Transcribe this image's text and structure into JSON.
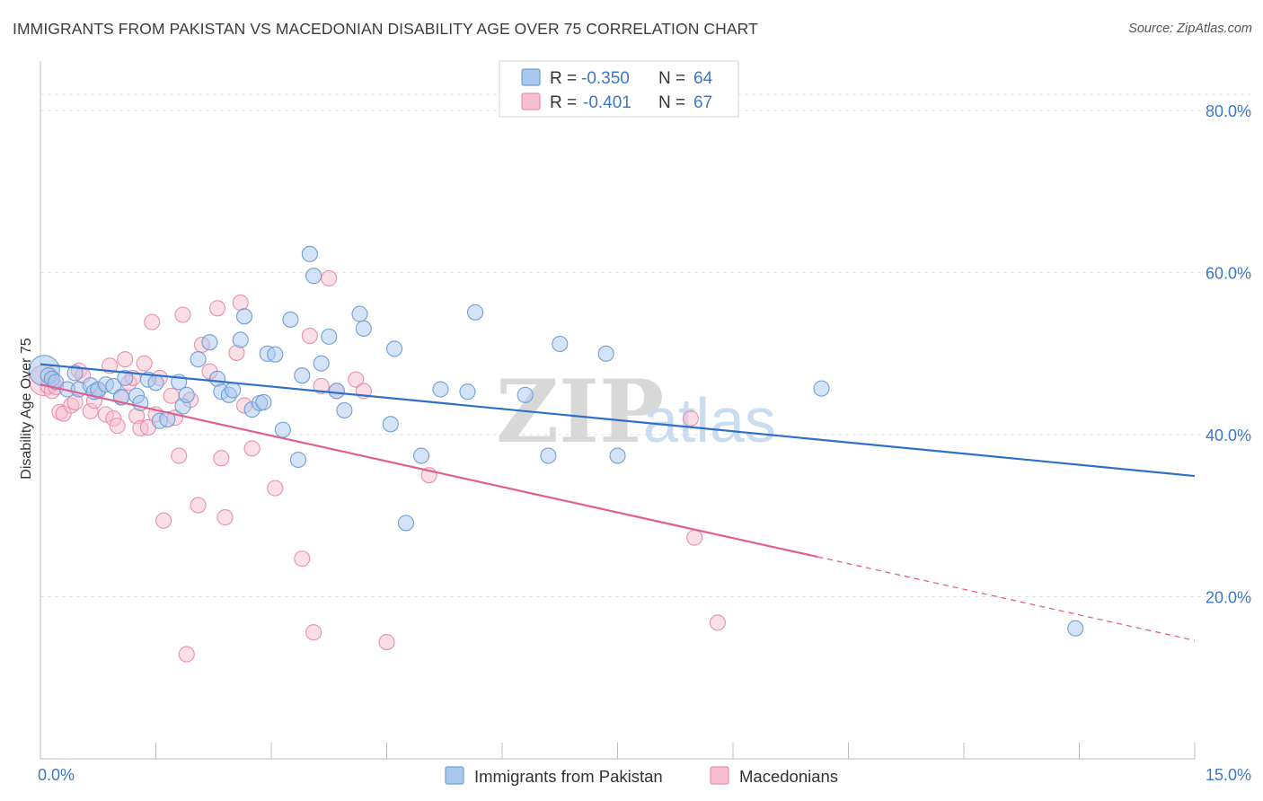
{
  "title": "IMMIGRANTS FROM PAKISTAN VS MACEDONIAN DISABILITY AGE OVER 75 CORRELATION CHART",
  "source": "Source: ZipAtlas.com",
  "watermark": {
    "part1": "ZIP",
    "part2": "atlas"
  },
  "legend_box": {
    "rows": [
      {
        "r_label": "R =",
        "r_value": "-0.350",
        "n_label": "N =",
        "n_value": "64"
      },
      {
        "r_label": "R =",
        "r_value": "-0.401",
        "n_label": "N =",
        "n_value": "67"
      }
    ]
  },
  "colors": {
    "blue_fill": "#a9c8ee",
    "blue_stroke": "#6f9fd8",
    "blue_line": "#2e6fcb",
    "pink_fill": "#f6bfd0",
    "pink_stroke": "#e98fae",
    "pink_line": "#e0608c",
    "tick_text": "#3d77c9",
    "grid": "#e2e2e2"
  },
  "chart_data": {
    "type": "scatter",
    "xlabel": "",
    "ylabel": "Disability Age Over 75",
    "xlim": [
      0,
      15
    ],
    "ylim": [
      0,
      85
    ],
    "x_tick_labels": [
      "0.0%",
      "15.0%"
    ],
    "y_ticks": [
      20,
      40,
      60,
      80
    ],
    "y_tick_labels": [
      "20.0%",
      "40.0%",
      "60.0%",
      "80.0%"
    ],
    "grid": true,
    "legend_position": "bottom",
    "series": [
      {
        "name": "Immigrants from Pakistan",
        "color": "blue",
        "r": -0.35,
        "n": 64,
        "trend": {
          "x": [
            0,
            15
          ],
          "y": [
            48.7,
            34.9
          ],
          "dash_from": null
        },
        "points": [
          {
            "x": 0.05,
            "y": 47.9,
            "big": true
          },
          {
            "x": 0.1,
            "y": 47.3
          },
          {
            "x": 0.15,
            "y": 46.9
          },
          {
            "x": 0.2,
            "y": 46.5
          },
          {
            "x": 0.35,
            "y": 45.6
          },
          {
            "x": 0.45,
            "y": 47.6
          },
          {
            "x": 0.5,
            "y": 45.6
          },
          {
            "x": 0.65,
            "y": 46.1
          },
          {
            "x": 0.7,
            "y": 45.3
          },
          {
            "x": 0.75,
            "y": 45.6
          },
          {
            "x": 0.85,
            "y": 46.2
          },
          {
            "x": 0.95,
            "y": 46.0
          },
          {
            "x": 1.05,
            "y": 44.6
          },
          {
            "x": 1.1,
            "y": 47.0
          },
          {
            "x": 1.25,
            "y": 44.8
          },
          {
            "x": 1.3,
            "y": 43.9
          },
          {
            "x": 1.4,
            "y": 46.8
          },
          {
            "x": 1.5,
            "y": 46.4
          },
          {
            "x": 1.55,
            "y": 41.7
          },
          {
            "x": 1.65,
            "y": 41.9
          },
          {
            "x": 1.8,
            "y": 46.5
          },
          {
            "x": 1.85,
            "y": 43.5
          },
          {
            "x": 1.9,
            "y": 44.9
          },
          {
            "x": 2.05,
            "y": 49.3
          },
          {
            "x": 2.2,
            "y": 51.4
          },
          {
            "x": 2.3,
            "y": 46.9
          },
          {
            "x": 2.35,
            "y": 45.3
          },
          {
            "x": 2.45,
            "y": 44.9
          },
          {
            "x": 2.5,
            "y": 45.5
          },
          {
            "x": 2.6,
            "y": 51.7
          },
          {
            "x": 2.65,
            "y": 54.6
          },
          {
            "x": 2.75,
            "y": 43.1
          },
          {
            "x": 2.85,
            "y": 43.9
          },
          {
            "x": 2.9,
            "y": 44.0
          },
          {
            "x": 2.95,
            "y": 50.0
          },
          {
            "x": 3.05,
            "y": 49.9
          },
          {
            "x": 3.15,
            "y": 40.6
          },
          {
            "x": 3.25,
            "y": 54.2
          },
          {
            "x": 3.35,
            "y": 36.9
          },
          {
            "x": 3.4,
            "y": 47.3
          },
          {
            "x": 3.5,
            "y": 62.3
          },
          {
            "x": 3.55,
            "y": 59.6
          },
          {
            "x": 3.65,
            "y": 48.8
          },
          {
            "x": 3.75,
            "y": 52.1
          },
          {
            "x": 3.85,
            "y": 45.4
          },
          {
            "x": 3.95,
            "y": 43.0
          },
          {
            "x": 4.15,
            "y": 54.9
          },
          {
            "x": 4.2,
            "y": 53.1
          },
          {
            "x": 4.55,
            "y": 41.3
          },
          {
            "x": 4.6,
            "y": 50.6
          },
          {
            "x": 4.75,
            "y": 29.1
          },
          {
            "x": 4.95,
            "y": 37.4
          },
          {
            "x": 5.2,
            "y": 45.6
          },
          {
            "x": 5.55,
            "y": 45.3
          },
          {
            "x": 5.65,
            "y": 55.1
          },
          {
            "x": 6.3,
            "y": 44.9
          },
          {
            "x": 6.6,
            "y": 37.4
          },
          {
            "x": 6.75,
            "y": 51.2
          },
          {
            "x": 7.35,
            "y": 50.0
          },
          {
            "x": 7.5,
            "y": 37.4
          },
          {
            "x": 10.15,
            "y": 45.7
          },
          {
            "x": 13.45,
            "y": 16.1
          }
        ]
      },
      {
        "name": "Macedonians",
        "color": "pink",
        "r": -0.401,
        "n": 67,
        "trend": {
          "x": [
            0,
            15
          ],
          "y": [
            46.2,
            14.6
          ],
          "dash_from": 10.1
        },
        "points": [
          {
            "x": 0.05,
            "y": 46.7,
            "big": true
          },
          {
            "x": 0.1,
            "y": 46.0
          },
          {
            "x": 0.15,
            "y": 45.4
          },
          {
            "x": 0.2,
            "y": 45.9
          },
          {
            "x": 0.25,
            "y": 42.8
          },
          {
            "x": 0.3,
            "y": 42.6
          },
          {
            "x": 0.4,
            "y": 43.6
          },
          {
            "x": 0.45,
            "y": 44.0
          },
          {
            "x": 0.5,
            "y": 47.9
          },
          {
            "x": 0.55,
            "y": 47.3
          },
          {
            "x": 0.65,
            "y": 42.9
          },
          {
            "x": 0.7,
            "y": 44.2
          },
          {
            "x": 0.75,
            "y": 45.4
          },
          {
            "x": 0.85,
            "y": 42.5
          },
          {
            "x": 0.9,
            "y": 48.5
          },
          {
            "x": 0.95,
            "y": 42.0
          },
          {
            "x": 1.0,
            "y": 41.1
          },
          {
            "x": 1.05,
            "y": 44.7
          },
          {
            "x": 1.1,
            "y": 49.3
          },
          {
            "x": 1.15,
            "y": 46.4
          },
          {
            "x": 1.2,
            "y": 47.0
          },
          {
            "x": 1.25,
            "y": 42.3
          },
          {
            "x": 1.3,
            "y": 40.8
          },
          {
            "x": 1.35,
            "y": 48.8
          },
          {
            "x": 1.4,
            "y": 40.9
          },
          {
            "x": 1.45,
            "y": 53.9
          },
          {
            "x": 1.5,
            "y": 42.5
          },
          {
            "x": 1.55,
            "y": 47.0
          },
          {
            "x": 1.6,
            "y": 29.4
          },
          {
            "x": 1.7,
            "y": 44.8
          },
          {
            "x": 1.75,
            "y": 42.1
          },
          {
            "x": 1.8,
            "y": 37.4
          },
          {
            "x": 1.85,
            "y": 54.8
          },
          {
            "x": 1.9,
            "y": 12.9
          },
          {
            "x": 1.95,
            "y": 44.3
          },
          {
            "x": 2.05,
            "y": 31.3
          },
          {
            "x": 2.1,
            "y": 51.1
          },
          {
            "x": 2.2,
            "y": 47.8
          },
          {
            "x": 2.3,
            "y": 55.6
          },
          {
            "x": 2.35,
            "y": 37.1
          },
          {
            "x": 2.4,
            "y": 29.8
          },
          {
            "x": 2.55,
            "y": 50.1
          },
          {
            "x": 2.6,
            "y": 56.3
          },
          {
            "x": 2.65,
            "y": 43.6
          },
          {
            "x": 2.75,
            "y": 38.3
          },
          {
            "x": 3.05,
            "y": 33.4
          },
          {
            "x": 3.4,
            "y": 24.7
          },
          {
            "x": 3.5,
            "y": 52.2
          },
          {
            "x": 3.55,
            "y": 15.6
          },
          {
            "x": 3.65,
            "y": 46.0
          },
          {
            "x": 3.75,
            "y": 59.3
          },
          {
            "x": 3.85,
            "y": 45.4
          },
          {
            "x": 4.1,
            "y": 46.8
          },
          {
            "x": 4.2,
            "y": 45.4
          },
          {
            "x": 4.5,
            "y": 14.4
          },
          {
            "x": 5.05,
            "y": 35.0
          },
          {
            "x": 8.45,
            "y": 42.0
          },
          {
            "x": 8.5,
            "y": 27.3
          },
          {
            "x": 8.8,
            "y": 16.8
          }
        ]
      }
    ]
  }
}
